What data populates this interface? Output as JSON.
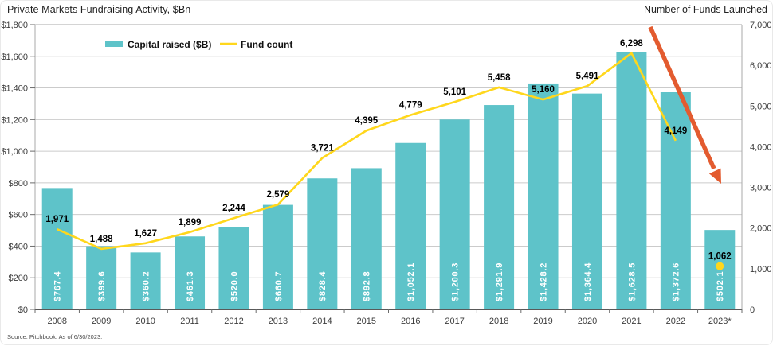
{
  "page": {
    "title_left": "Private Markets Fundraising Activity, $Bn",
    "title_right": "Number of Funds Launched",
    "source": "Source: Pitchbook. As of 6/30/2023."
  },
  "legend": {
    "items": [
      {
        "label": "Capital raised ($B)",
        "swatch": "bar"
      },
      {
        "label": "Fund count",
        "swatch": "line"
      }
    ]
  },
  "colors": {
    "bar": "#5EC3C9",
    "line": "#FFD71C",
    "arrow": "#E35B2F",
    "bar_label": "#FFFFFF",
    "point_label": "#000000",
    "grid": "#CBCBCB",
    "plot_border": "#A9A9A9",
    "axis_bottom": "#222222",
    "tick": "#6B6B6B",
    "text": "#3D3D3D"
  },
  "chart_data": {
    "type": "bar",
    "subtype": "bar+line dual-axis",
    "title": "Private Markets Fundraising Activity, $Bn",
    "right_axis_title": "Number of Funds Launched",
    "categories": [
      "2008",
      "2009",
      "2010",
      "2011",
      "2012",
      "2013",
      "2014",
      "2015",
      "2016",
      "2017",
      "2018",
      "2019",
      "2020",
      "2021",
      "2022",
      "2023*"
    ],
    "series": [
      {
        "name": "Capital raised ($B)",
        "type": "bar",
        "axis": "left",
        "values": [
          767.4,
          399.6,
          360.2,
          461.3,
          520.0,
          660.7,
          828.4,
          892.8,
          1052.1,
          1200.3,
          1291.9,
          1428.2,
          1364.4,
          1628.5,
          1372.6,
          502.1
        ],
        "labels": [
          "$767.4",
          "$399.6",
          "$360.2",
          "$461.3",
          "$520.0",
          "$660.7",
          "$828.4",
          "$892.8",
          "$1,052.1",
          "$1,200.3",
          "$1,291.9",
          "$1,428.2",
          "$1,364.4",
          "$1,628.5",
          "$1,372.6",
          "$502.1"
        ]
      },
      {
        "name": "Fund count",
        "type": "line",
        "axis": "right",
        "values": [
          1971,
          1488,
          1627,
          1899,
          2244,
          2579,
          3721,
          4395,
          4779,
          5101,
          5458,
          5160,
          5491,
          6298,
          4149,
          1062
        ],
        "labels": [
          "1,971",
          "1,488",
          "1,627",
          "1,899",
          "2,244",
          "2,579",
          "3,721",
          "4,395",
          "4,779",
          "5,101",
          "5,458",
          "5,160",
          "5,491",
          "6,298",
          "4,149",
          "1,062"
        ],
        "dot_only_indices": [
          15
        ]
      }
    ],
    "left_axis": {
      "min": 0,
      "max": 1800,
      "step": 200,
      "ticks": [
        "$0",
        "$200",
        "$400",
        "$600",
        "$800",
        "$1,000",
        "$1,200",
        "$1,400",
        "$1,600",
        "$1,800"
      ]
    },
    "right_axis": {
      "min": 0,
      "max": 7000,
      "step": 1000,
      "ticks": [
        "0",
        "1,000",
        "2,000",
        "3,000",
        "4,000",
        "5,000",
        "6,000",
        "7,000"
      ]
    },
    "grid": "horizontal, every $200 of left axis",
    "legend_position": "inside plot, top-left",
    "annotations": [
      {
        "type": "trend-arrow-down",
        "meaning": "sharp decline in fund count 2021-2023"
      }
    ]
  }
}
